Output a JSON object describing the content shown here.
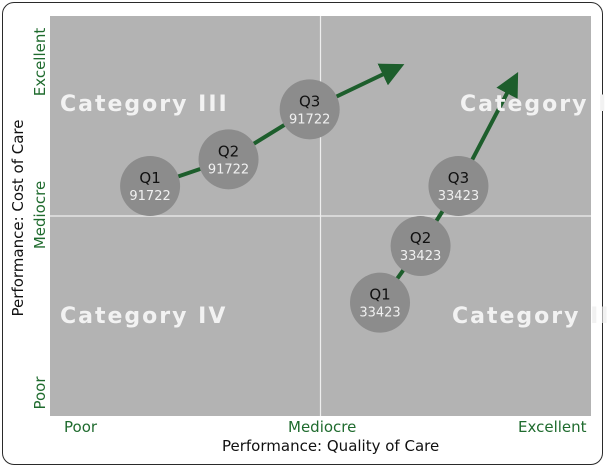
{
  "chart_data": {
    "type": "scatter",
    "xlabel": "Performance: Quality of Care",
    "ylabel": "Performance: Cost of Care",
    "x_ticks": [
      "Poor",
      "Mediocre",
      "Excellent"
    ],
    "y_ticks": [
      "Poor",
      "Mediocre",
      "Excellent"
    ],
    "quadrants": {
      "top_left": "Category III",
      "top_right": "Category I",
      "bottom_left": "Category IV",
      "bottom_right": "Category II"
    },
    "series": [
      {
        "name": "91722",
        "points": [
          {
            "label": "Q1",
            "id": "91722",
            "x": 0.37,
            "y": 0.69
          },
          {
            "label": "Q2",
            "id": "91722",
            "x": 0.66,
            "y": 0.77
          },
          {
            "label": "Q3",
            "id": "91722",
            "x": 0.96,
            "y": 0.92
          }
        ],
        "arrow_to": {
          "x": 1.27,
          "y": 1.04
        }
      },
      {
        "name": "33423",
        "points": [
          {
            "label": "Q1",
            "id": "33423",
            "x": 1.22,
            "y": 0.34
          },
          {
            "label": "Q2",
            "id": "33423",
            "x": 1.37,
            "y": 0.51
          },
          {
            "label": "Q3",
            "id": "33423",
            "x": 1.51,
            "y": 0.69
          }
        ],
        "arrow_to": {
          "x": 1.71,
          "y": 1.0
        }
      }
    ],
    "xlim": [
      0,
      2
    ],
    "ylim": [
      0,
      1.2
    ],
    "grid": false,
    "colors": {
      "plot_bg": "#b3b3b3",
      "divider": "#eeeeee",
      "bubble": "#8c8c8c",
      "arrow": "#1d5e2c",
      "tick_text": "#1f6b2e",
      "quadrant_text": "#f2f2f2"
    }
  }
}
